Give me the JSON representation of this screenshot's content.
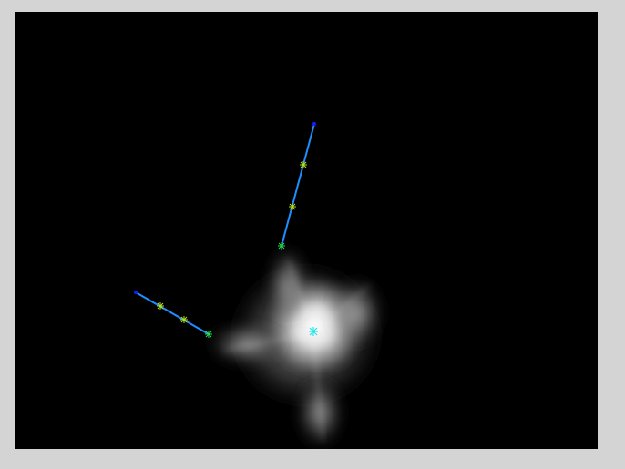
{
  "viewer": {
    "background_color": "#000000",
    "frame_color": "#d4d4d4"
  },
  "colors": {
    "skeleton_line": "#1e8fff",
    "endpoint_marker": "#1a1aff",
    "joint_marker": "#b4e01e",
    "base_marker": "#22dd55",
    "center_marker": "#22e6e6",
    "glow": "#ffffff"
  },
  "icons": {
    "endpoint": "blue-dot-icon",
    "joint": "green-cross-icon",
    "center": "cyan-cross-icon"
  }
}
